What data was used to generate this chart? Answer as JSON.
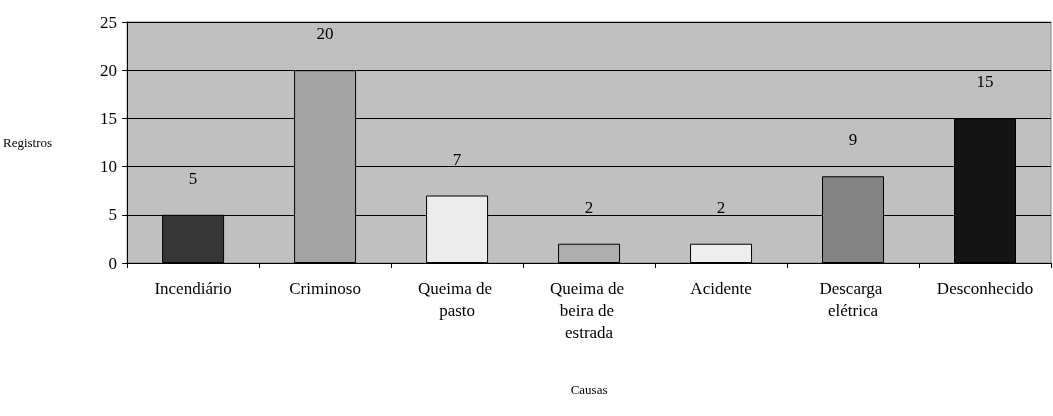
{
  "chart_data": {
    "type": "bar",
    "xlabel": "Causas",
    "ylabel": "Registros",
    "categories": [
      "Incendiário",
      "Criminoso",
      "Queima de pasto",
      "Queima de beira de estrada",
      "Acidente",
      "Descarga elétrica",
      "Desconhecido"
    ],
    "values": [
      5,
      20,
      7,
      2,
      2,
      9,
      15
    ],
    "colors": [
      "#363636",
      "#a4a4a4",
      "#ececec",
      "#aeaeae",
      "#eeeeee",
      "#838383",
      "#141414"
    ],
    "ylim": [
      0,
      25
    ],
    "yticks": [
      0,
      5,
      10,
      15,
      20,
      25
    ],
    "grid": "y",
    "data_labels": true
  }
}
